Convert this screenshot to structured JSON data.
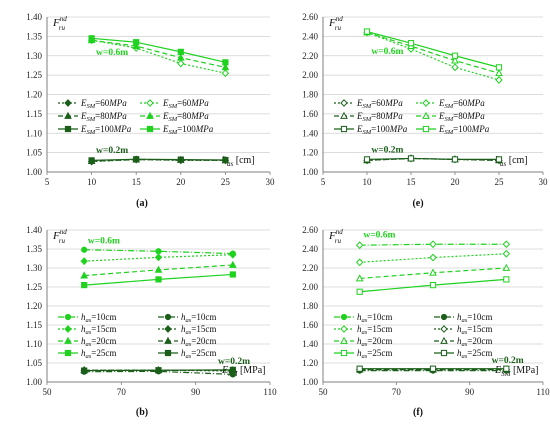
{
  "colors": {
    "green": "#1fd21f",
    "darkgreen": "#1a5e1a",
    "axis": "#7f7f7f",
    "grid": "#d0d0d0"
  },
  "chart_data": [
    {
      "id": "a",
      "panel_label": "(a)",
      "type": "line",
      "ylabel_main": "F",
      "ylabel_sub": "ru",
      "ylabel_sup": "nd",
      "xlabel_main": "h",
      "xlabel_sub": "as",
      "xlabel_unit": " [cm]",
      "xlim": [
        5,
        30
      ],
      "ylim": [
        1.0,
        1.4
      ],
      "xticks": [
        "5",
        "10",
        "15",
        "20",
        "25",
        "30"
      ],
      "yticks": [
        "1.00",
        "1.05",
        "1.10",
        "1.15",
        "1.20",
        "1.25",
        "1.30",
        "1.35",
        "1.40"
      ],
      "annotations": [
        {
          "text": "w=0.6m",
          "x": 10.5,
          "y": 1.302,
          "color": "green"
        },
        {
          "text": "w=0.2m",
          "x": 10.5,
          "y": 1.049,
          "color": "darkgreen"
        }
      ],
      "legend": [
        {
          "main": "E",
          "sub": "SM",
          "rest": "=60",
          "unit": "MPa",
          "dash": "2,2",
          "marker": "diamond",
          "fill": "filled",
          "color": "darkgreen"
        },
        {
          "main": "E",
          "sub": "SM",
          "rest": "=60",
          "unit": "MPa",
          "dash": "2,2",
          "marker": "diamond",
          "fill": "open",
          "color": "green"
        },
        {
          "main": "E",
          "sub": "SM",
          "rest": "=80",
          "unit": "MPa",
          "dash": "5,3",
          "marker": "triangle",
          "fill": "filled",
          "color": "darkgreen"
        },
        {
          "main": "E",
          "sub": "SM",
          "rest": "=80",
          "unit": "MPa",
          "dash": "5,3",
          "marker": "triangle",
          "fill": "filled",
          "color": "green"
        },
        {
          "main": "E",
          "sub": "SM",
          "rest": "=100",
          "unit": "MPa",
          "dash": "",
          "marker": "square",
          "fill": "filled",
          "color": "darkgreen"
        },
        {
          "main": "E",
          "sub": "SM",
          "rest": "=100",
          "unit": "MPa",
          "dash": "",
          "marker": "square",
          "fill": "filled",
          "color": "green"
        }
      ],
      "series": [
        {
          "x": [
            10,
            15,
            20,
            25
          ],
          "y": [
            1.34,
            1.32,
            1.28,
            1.255
          ],
          "color": "green",
          "dash": "2,2",
          "marker": "diamond",
          "fill": "open"
        },
        {
          "x": [
            10,
            15,
            20,
            25
          ],
          "y": [
            1.34,
            1.325,
            1.295,
            1.27
          ],
          "color": "green",
          "dash": "5,3",
          "marker": "triangle",
          "fill": "filled"
        },
        {
          "x": [
            10,
            15,
            20,
            25
          ],
          "y": [
            1.345,
            1.335,
            1.31,
            1.283
          ],
          "color": "green",
          "dash": "",
          "marker": "square",
          "fill": "filled"
        },
        {
          "x": [
            10,
            15,
            20,
            25
          ],
          "y": [
            1.027,
            1.032,
            1.03,
            1.03
          ],
          "color": "darkgreen",
          "dash": "2,2",
          "marker": "diamond",
          "fill": "filled"
        },
        {
          "x": [
            10,
            15,
            20,
            25
          ],
          "y": [
            1.028,
            1.032,
            1.031,
            1.03
          ],
          "color": "darkgreen",
          "dash": "5,3",
          "marker": "triangle",
          "fill": "filled"
        },
        {
          "x": [
            10,
            15,
            20,
            25
          ],
          "y": [
            1.03,
            1.033,
            1.032,
            1.031
          ],
          "color": "darkgreen",
          "dash": "",
          "marker": "square",
          "fill": "filled"
        }
      ]
    },
    {
      "id": "e",
      "panel_label": "(e)",
      "type": "line",
      "ylabel_main": "F",
      "ylabel_sub": "ru",
      "ylabel_sup": "nd",
      "xlabel_main": "h",
      "xlabel_sub": "as",
      "xlabel_unit": " [cm]",
      "xlim": [
        5,
        30
      ],
      "ylim": [
        1.0,
        2.6
      ],
      "xticks": [
        "5",
        "10",
        "15",
        "20",
        "25",
        "30"
      ],
      "yticks": [
        "1.00",
        "1.20",
        "1.40",
        "1.60",
        "1.80",
        "2.00",
        "2.20",
        "2.40",
        "2.60"
      ],
      "annotations": [
        {
          "text": "w=0.6m",
          "x": 10.5,
          "y": 2.22,
          "color": "green"
        },
        {
          "text": "w=0.2m",
          "x": 10.5,
          "y": 1.2,
          "color": "darkgreen"
        }
      ],
      "legend": [
        {
          "main": "E",
          "sub": "SM",
          "rest": "=60",
          "unit": "MPa",
          "dash": "2,2",
          "marker": "diamond",
          "fill": "open",
          "color": "darkgreen"
        },
        {
          "main": "E",
          "sub": "SM",
          "rest": "=60",
          "unit": "MPa",
          "dash": "2,2",
          "marker": "diamond",
          "fill": "open",
          "color": "green"
        },
        {
          "main": "E",
          "sub": "SM",
          "rest": "=80",
          "unit": "MPa",
          "dash": "5,3",
          "marker": "triangle",
          "fill": "open",
          "color": "darkgreen"
        },
        {
          "main": "E",
          "sub": "SM",
          "rest": "=80",
          "unit": "MPa",
          "dash": "5,3",
          "marker": "triangle",
          "fill": "open",
          "color": "green"
        },
        {
          "main": "E",
          "sub": "SM",
          "rest": "=100",
          "unit": "MPa",
          "dash": "",
          "marker": "square",
          "fill": "open",
          "color": "darkgreen"
        },
        {
          "main": "E",
          "sub": "SM",
          "rest": "=100",
          "unit": "MPa",
          "dash": "",
          "marker": "square",
          "fill": "open",
          "color": "green"
        }
      ],
      "series": [
        {
          "x": [
            10,
            15,
            20,
            25
          ],
          "y": [
            2.44,
            2.27,
            2.08,
            1.95
          ],
          "color": "green",
          "dash": "2,2",
          "marker": "diamond",
          "fill": "open"
        },
        {
          "x": [
            10,
            15,
            20,
            25
          ],
          "y": [
            2.44,
            2.3,
            2.15,
            2.02
          ],
          "color": "green",
          "dash": "5,3",
          "marker": "triangle",
          "fill": "open"
        },
        {
          "x": [
            10,
            15,
            20,
            25
          ],
          "y": [
            2.45,
            2.33,
            2.2,
            2.08
          ],
          "color": "green",
          "dash": "",
          "marker": "square",
          "fill": "open"
        },
        {
          "x": [
            10,
            15,
            20,
            25
          ],
          "y": [
            1.12,
            1.14,
            1.13,
            1.12
          ],
          "color": "darkgreen",
          "dash": "2,2",
          "marker": "diamond",
          "fill": "open"
        },
        {
          "x": [
            10,
            15,
            20,
            25
          ],
          "y": [
            1.12,
            1.14,
            1.13,
            1.12
          ],
          "color": "darkgreen",
          "dash": "5,3",
          "marker": "triangle",
          "fill": "open"
        },
        {
          "x": [
            10,
            15,
            20,
            25
          ],
          "y": [
            1.13,
            1.14,
            1.13,
            1.13
          ],
          "color": "darkgreen",
          "dash": "",
          "marker": "square",
          "fill": "open"
        }
      ]
    },
    {
      "id": "b",
      "panel_label": "(b)",
      "type": "line",
      "ylabel_main": "F",
      "ylabel_sub": "ru",
      "ylabel_sup": "nd",
      "xlabel_main": "E",
      "xlabel_sub": "SM",
      "xlabel_unit": " [MPa]",
      "xlim": [
        50,
        110
      ],
      "ylim": [
        1.0,
        1.4
      ],
      "xticks": [
        "50",
        "70",
        "90",
        "110"
      ],
      "yticks": [
        "1.00",
        "1.05",
        "1.10",
        "1.15",
        "1.20",
        "1.25",
        "1.30",
        "1.35",
        "1.40"
      ],
      "annotations": [
        {
          "text": "w=0.6m",
          "x": 61,
          "y": 1.364,
          "color": "green"
        },
        {
          "text": "w=0.2m",
          "x": 96,
          "y": 1.048,
          "color": "darkgreen"
        }
      ],
      "legend": [
        {
          "main": "h",
          "sub": "as",
          "rest": "=10cm",
          "unit": "",
          "dash": "6,2,1,2",
          "marker": "circle",
          "fill": "filled",
          "color": "green"
        },
        {
          "main": "h",
          "sub": "as",
          "rest": "=10cm",
          "unit": "",
          "dash": "6,2,1,2",
          "marker": "circle",
          "fill": "filled",
          "color": "darkgreen"
        },
        {
          "main": "h",
          "sub": "as",
          "rest": "=15cm",
          "unit": "",
          "dash": "2,2",
          "marker": "diamond",
          "fill": "filled",
          "color": "green"
        },
        {
          "main": "h",
          "sub": "as",
          "rest": "=15cm",
          "unit": "",
          "dash": "2,2",
          "marker": "diamond",
          "fill": "filled",
          "color": "darkgreen"
        },
        {
          "main": "h",
          "sub": "as",
          "rest": "=20cm",
          "unit": "",
          "dash": "5,3",
          "marker": "triangle",
          "fill": "filled",
          "color": "green"
        },
        {
          "main": "h",
          "sub": "as",
          "rest": "=20cm",
          "unit": "",
          "dash": "5,3",
          "marker": "triangle",
          "fill": "filled",
          "color": "darkgreen"
        },
        {
          "main": "h",
          "sub": "as",
          "rest": "=25cm",
          "unit": "",
          "dash": "",
          "marker": "square",
          "fill": "filled",
          "color": "green"
        },
        {
          "main": "h",
          "sub": "as",
          "rest": "=25cm",
          "unit": "",
          "dash": "",
          "marker": "square",
          "fill": "filled",
          "color": "darkgreen"
        }
      ],
      "series": [
        {
          "x": [
            60,
            80,
            100
          ],
          "y": [
            1.348,
            1.344,
            1.338
          ],
          "color": "green",
          "dash": "6,2,1,2",
          "marker": "circle",
          "fill": "filled"
        },
        {
          "x": [
            60,
            80,
            100
          ],
          "y": [
            1.318,
            1.328,
            1.335
          ],
          "color": "green",
          "dash": "2,2",
          "marker": "diamond",
          "fill": "filled"
        },
        {
          "x": [
            60,
            80,
            100
          ],
          "y": [
            1.28,
            1.295,
            1.308
          ],
          "color": "green",
          "dash": "5,3",
          "marker": "triangle",
          "fill": "filled"
        },
        {
          "x": [
            60,
            80,
            100
          ],
          "y": [
            1.255,
            1.27,
            1.283
          ],
          "color": "green",
          "dash": "",
          "marker": "square",
          "fill": "filled"
        },
        {
          "x": [
            60,
            80,
            100
          ],
          "y": [
            1.027,
            1.028,
            1.02
          ],
          "color": "darkgreen",
          "dash": "6,2,1,2",
          "marker": "circle",
          "fill": "filled"
        },
        {
          "x": [
            60,
            80,
            100
          ],
          "y": [
            1.031,
            1.031,
            1.029
          ],
          "color": "darkgreen",
          "dash": "2,2",
          "marker": "diamond",
          "fill": "filled"
        },
        {
          "x": [
            60,
            80,
            100
          ],
          "y": [
            1.031,
            1.031,
            1.031
          ],
          "color": "darkgreen",
          "dash": "5,3",
          "marker": "triangle",
          "fill": "filled"
        },
        {
          "x": [
            60,
            80,
            100
          ],
          "y": [
            1.03,
            1.031,
            1.032
          ],
          "color": "darkgreen",
          "dash": "",
          "marker": "square",
          "fill": "filled"
        }
      ]
    },
    {
      "id": "f",
      "panel_label": "(f)",
      "type": "line",
      "ylabel_main": "F",
      "ylabel_sub": "ru",
      "ylabel_sup": "nd",
      "xlabel_main": "E",
      "xlabel_sub": "SM",
      "xlabel_unit": " [MPa]",
      "xlim": [
        50,
        110
      ],
      "ylim": [
        1.0,
        2.6
      ],
      "xticks": [
        "50",
        "70",
        "90",
        "110"
      ],
      "yticks": [
        "1.00",
        "1.20",
        "1.40",
        "1.60",
        "1.80",
        "2.00",
        "2.20",
        "2.40",
        "2.60"
      ],
      "annotations": [
        {
          "text": "w=0.6m",
          "x": 61,
          "y": 2.52,
          "color": "green"
        },
        {
          "text": "w=0.2m",
          "x": 96,
          "y": 1.2,
          "color": "darkgreen"
        }
      ],
      "legend": [
        {
          "main": "h",
          "sub": "as",
          "rest": "=10cm",
          "unit": "",
          "dash": "6,2,1,2",
          "marker": "circle",
          "fill": "filled",
          "color": "green"
        },
        {
          "main": "h",
          "sub": "as",
          "rest": "=10cm",
          "unit": "",
          "dash": "6,2,1,2",
          "marker": "circle",
          "fill": "filled",
          "color": "darkgreen"
        },
        {
          "main": "h",
          "sub": "as",
          "rest": "=15cm",
          "unit": "",
          "dash": "2,2",
          "marker": "diamond",
          "fill": "open",
          "color": "green"
        },
        {
          "main": "h",
          "sub": "as",
          "rest": "=15cm",
          "unit": "",
          "dash": "2,2",
          "marker": "diamond",
          "fill": "open",
          "color": "darkgreen"
        },
        {
          "main": "h",
          "sub": "as",
          "rest": "=20cm",
          "unit": "",
          "dash": "5,3",
          "marker": "triangle",
          "fill": "open",
          "color": "green"
        },
        {
          "main": "h",
          "sub": "as",
          "rest": "=20cm",
          "unit": "",
          "dash": "5,3",
          "marker": "triangle",
          "fill": "open",
          "color": "darkgreen"
        },
        {
          "main": "h",
          "sub": "as",
          "rest": "=25cm",
          "unit": "",
          "dash": "",
          "marker": "square",
          "fill": "open",
          "color": "green"
        },
        {
          "main": "h",
          "sub": "as",
          "rest": "=25cm",
          "unit": "",
          "dash": "",
          "marker": "square",
          "fill": "open",
          "color": "darkgreen"
        }
      ],
      "series": [
        {
          "x": [
            60,
            80,
            100
          ],
          "y": [
            2.44,
            2.45,
            2.45
          ],
          "color": "green",
          "dash": "6,2,1,2",
          "marker": "diamond",
          "fill": "open"
        },
        {
          "x": [
            60,
            80,
            100
          ],
          "y": [
            2.26,
            2.31,
            2.35
          ],
          "color": "green",
          "dash": "2,2",
          "marker": "diamond",
          "fill": "open"
        },
        {
          "x": [
            60,
            80,
            100
          ],
          "y": [
            2.09,
            2.15,
            2.2
          ],
          "color": "green",
          "dash": "5,3",
          "marker": "triangle",
          "fill": "open"
        },
        {
          "x": [
            60,
            80,
            100
          ],
          "y": [
            1.95,
            2.02,
            2.08
          ],
          "color": "green",
          "dash": "",
          "marker": "square",
          "fill": "open"
        },
        {
          "x": [
            60,
            80,
            100
          ],
          "y": [
            1.12,
            1.12,
            1.12
          ],
          "color": "darkgreen",
          "dash": "6,2,1,2",
          "marker": "circle",
          "fill": "filled"
        },
        {
          "x": [
            60,
            80,
            100
          ],
          "y": [
            1.13,
            1.13,
            1.13
          ],
          "color": "darkgreen",
          "dash": "2,2",
          "marker": "diamond",
          "fill": "open"
        },
        {
          "x": [
            60,
            80,
            100
          ],
          "y": [
            1.13,
            1.13,
            1.13
          ],
          "color": "darkgreen",
          "dash": "5,3",
          "marker": "triangle",
          "fill": "open"
        },
        {
          "x": [
            60,
            80,
            100
          ],
          "y": [
            1.14,
            1.14,
            1.14
          ],
          "color": "darkgreen",
          "dash": "",
          "marker": "square",
          "fill": "open"
        }
      ]
    }
  ]
}
